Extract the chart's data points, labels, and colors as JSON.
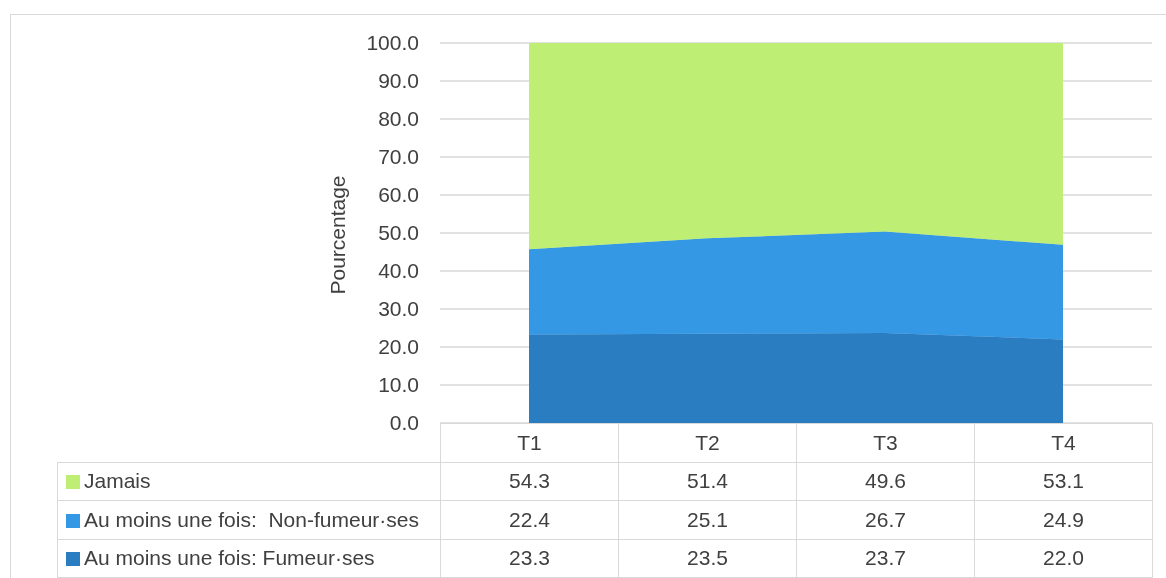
{
  "chart_data": {
    "type": "area",
    "ylabel": "Pourcentage",
    "categories": [
      "T1",
      "T2",
      "T3",
      "T4"
    ],
    "stacked": true,
    "series": [
      {
        "name": "Au moins une fois: Fumeur·ses",
        "color": "#2a7dc0",
        "values": [
          23.3,
          23.5,
          23.7,
          22.0
        ],
        "value_labels": [
          "23.3",
          "23.5",
          "23.7",
          "22.0"
        ]
      },
      {
        "name": "Au moins une fois:  Non-fumeur·ses",
        "color": "#3598e4",
        "values": [
          22.4,
          25.1,
          26.7,
          24.9
        ],
        "value_labels": [
          "22.4",
          "25.1",
          "26.7",
          "24.9"
        ]
      },
      {
        "name": "Jamais",
        "color": "#bfee75",
        "values": [
          54.3,
          51.4,
          49.6,
          53.1
        ],
        "value_labels": [
          "54.3",
          "51.4",
          "49.6",
          "53.1"
        ]
      }
    ],
    "ylim": [
      0,
      100
    ],
    "yticks": [
      {
        "value": 0,
        "label": "0.0"
      },
      {
        "value": 10,
        "label": "10.0"
      },
      {
        "value": 20,
        "label": "20.0"
      },
      {
        "value": 30,
        "label": "30.0"
      },
      {
        "value": 40,
        "label": "40.0"
      },
      {
        "value": 50,
        "label": "50.0"
      },
      {
        "value": 60,
        "label": "60.0"
      },
      {
        "value": 70,
        "label": "70.0"
      },
      {
        "value": 80,
        "label": "80.0"
      },
      {
        "value": 90,
        "label": "90.0"
      },
      {
        "value": 100,
        "label": "100.0"
      }
    ],
    "grid": "y",
    "legend": "bottom"
  }
}
